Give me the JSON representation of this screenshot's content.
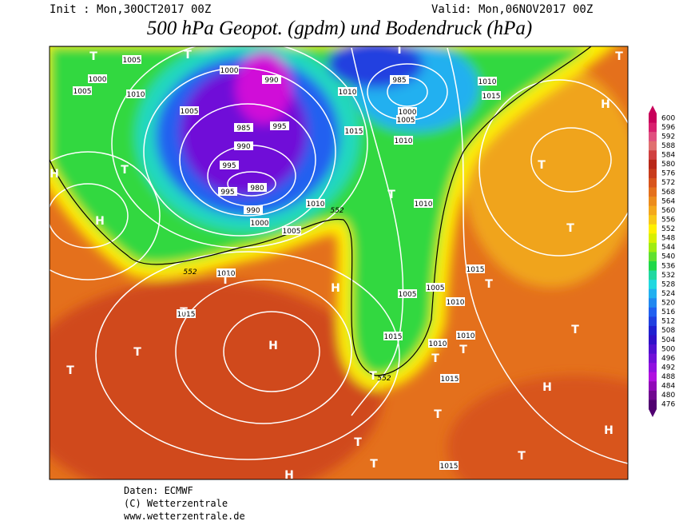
{
  "header": {
    "init": "Init : Mon,30OCT2017 00Z",
    "valid": "Valid: Mon,06NOV2017 00Z",
    "title": "500 hPa Geopot. (gpdm) und Bodendruck (hPa)"
  },
  "colorbar": {
    "labels": [
      600,
      596,
      592,
      588,
      584,
      580,
      576,
      572,
      568,
      564,
      560,
      556,
      552,
      548,
      544,
      540,
      536,
      532,
      528,
      524,
      520,
      516,
      512,
      508,
      504,
      500,
      496,
      492,
      488,
      484,
      480,
      476
    ],
    "colors": [
      "#c8005a",
      "#d8206e",
      "#e05080",
      "#e07070",
      "#d04040",
      "#b82818",
      "#c83c1c",
      "#d8541c",
      "#e4701c",
      "#ec8c1c",
      "#f4a81c",
      "#f8c818",
      "#fff000",
      "#d8f000",
      "#a0ec10",
      "#60e030",
      "#20d848",
      "#20d8a0",
      "#20d8e0",
      "#20b0f0",
      "#2088f0",
      "#2060f0",
      "#2040e0",
      "#2020d0",
      "#3010c8",
      "#5010d0",
      "#7010d8",
      "#9010e0",
      "#b010e0",
      "#9008b8",
      "#700890",
      "#500070"
    ]
  },
  "map": {
    "pressure_labels": [
      1005,
      1000,
      1005,
      1010,
      1005,
      1000,
      990,
      995,
      985,
      990,
      995,
      980,
      995,
      990,
      1000,
      1005,
      1010,
      1010,
      1015,
      1010,
      985,
      1000,
      1005,
      1010,
      1015,
      1010,
      1015,
      1005,
      1010,
      1005,
      1015,
      1010,
      1010,
      1015,
      1010,
      1015,
      1015
    ],
    "contour_labels": [
      552,
      552,
      552
    ],
    "markers": [
      "T",
      "T",
      "T",
      "T",
      "H",
      "T",
      "H",
      "H",
      "T",
      "T",
      "T",
      "T",
      "T",
      "H",
      "T",
      "T",
      "T",
      "H",
      "T",
      "T",
      "T",
      "T",
      "H",
      "T",
      "T",
      "T",
      "T",
      "H",
      "H"
    ]
  },
  "footer": {
    "lines": [
      "Daten: ECMWF",
      "(C) Wetterzentrale",
      "www.wetterzentrale.de"
    ]
  }
}
